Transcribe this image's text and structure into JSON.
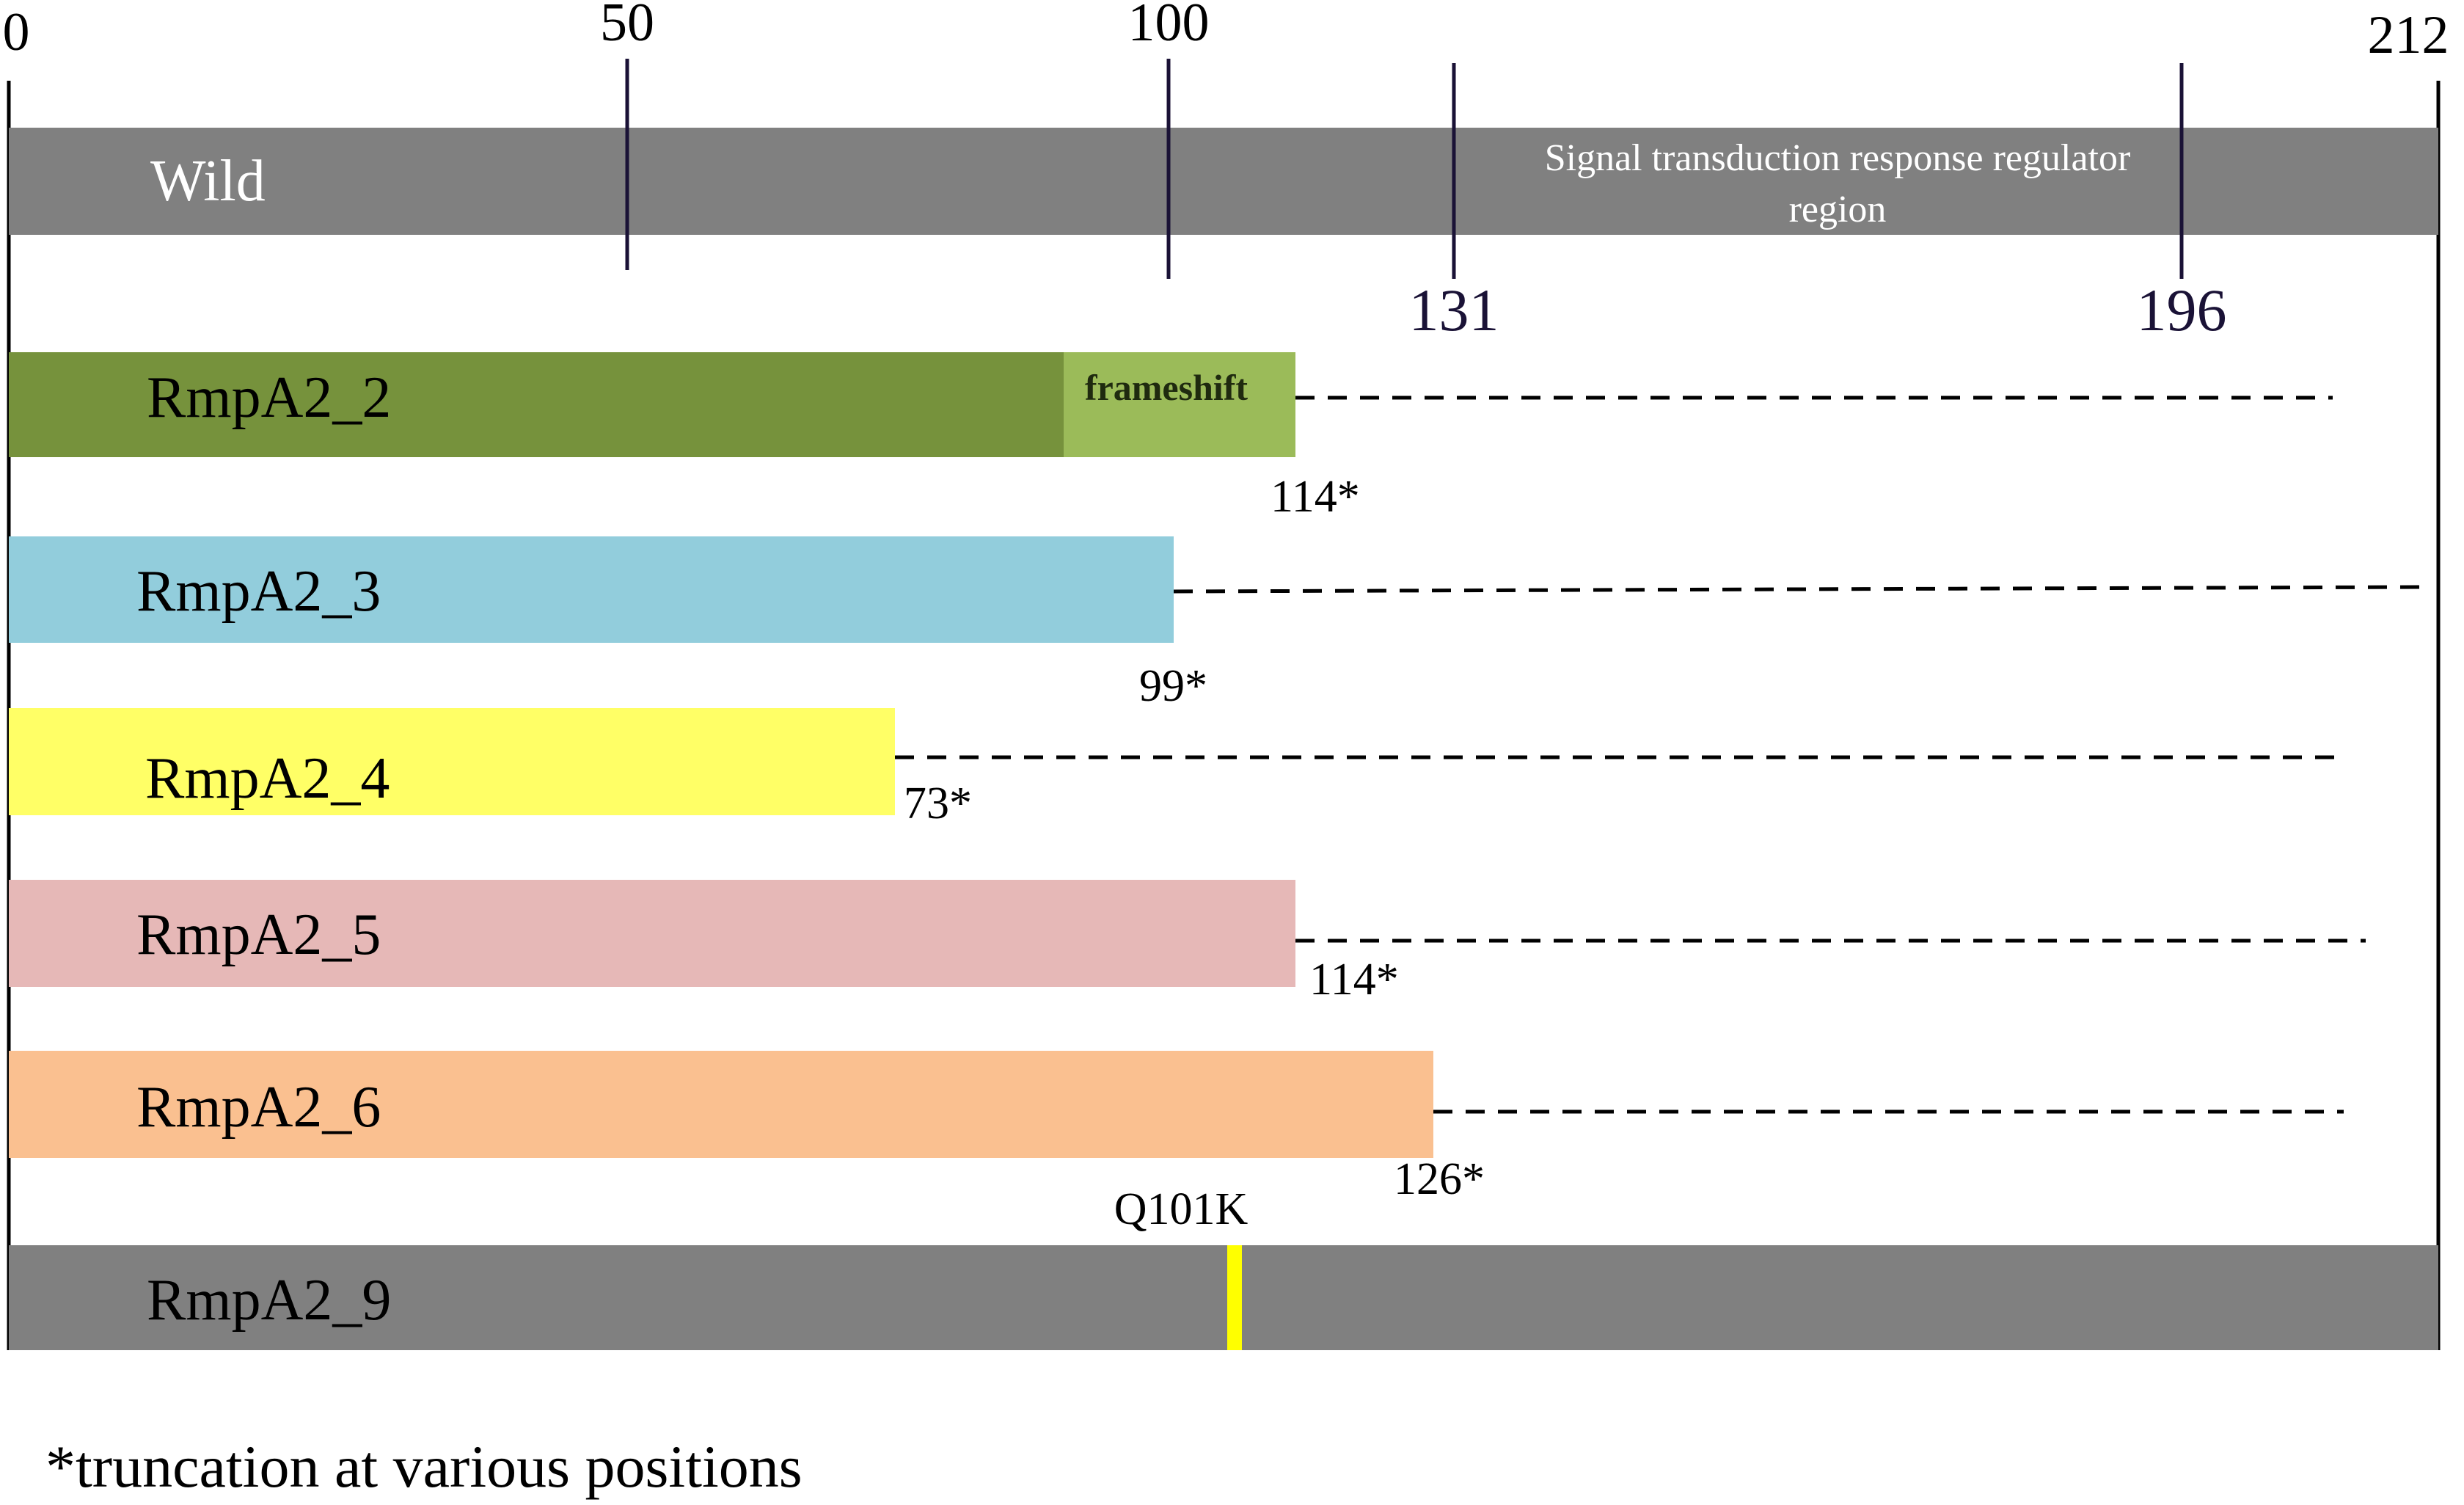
{
  "scale": {
    "max": 212,
    "ticks": [
      {
        "value": 0,
        "label": "0"
      },
      {
        "value": 50,
        "label": "50"
      },
      {
        "value": 100,
        "label": "100"
      },
      {
        "value": 212,
        "label": "212"
      }
    ]
  },
  "wild": {
    "label": "Wild",
    "color": "#808080",
    "domain_label_line1": "Signal transduction response regulator",
    "domain_label_line2": "region",
    "domain_markers": [
      {
        "value": 131,
        "label": "131"
      },
      {
        "value": 196,
        "label": "196"
      }
    ]
  },
  "variants": [
    {
      "label": "RmpA2_2",
      "end": 114,
      "end_label": "114*",
      "color": "#76923c",
      "frameshift": {
        "from": 92,
        "label": "frameshift",
        "color": "#9bbb59"
      }
    },
    {
      "label": "RmpA2_3",
      "end": 99,
      "end_label": "99*",
      "color": "#92cddc"
    },
    {
      "label": "RmpA2_4",
      "end": 73,
      "end_label": "73*",
      "color": "#ffff66"
    },
    {
      "label": "RmpA2_5",
      "end": 114,
      "end_label": "114*",
      "color": "#e6b8b7"
    },
    {
      "label": "RmpA2_6",
      "end": 126,
      "end_label": "126*",
      "color": "#fac090"
    }
  ],
  "rmpa2_9": {
    "label": "RmpA2_9",
    "color": "#808080",
    "mutation": {
      "position": 107,
      "label": "Q101K",
      "color": "#ffff00"
    }
  },
  "footnote": "*truncation at various positions"
}
